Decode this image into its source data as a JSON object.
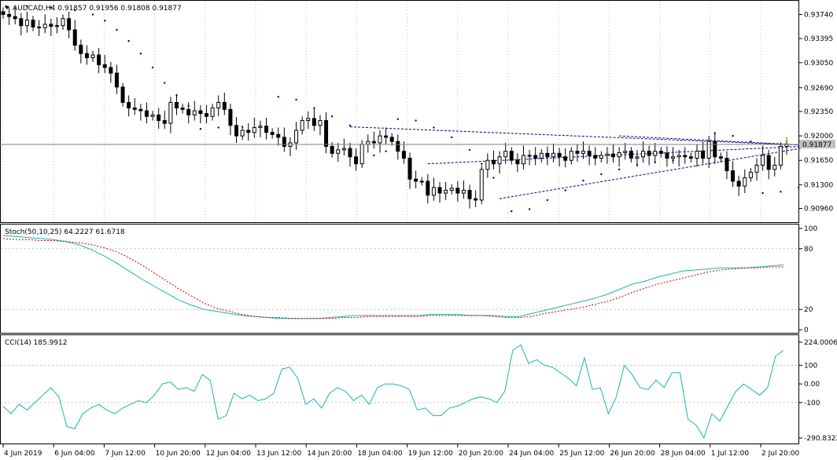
{
  "colors": {
    "background": "#ffffff",
    "grid": "#c0c0c0",
    "candle": "#000000",
    "sar_dots": "#000080",
    "trendlines": "#000080",
    "stoch_main": "#20b2aa",
    "stoch_signal": "#cc0000",
    "cci_line": "#20b2aa",
    "price_tag_bg": "#c0c0c0",
    "bid_line": "#808080"
  },
  "icons": {
    "menu": "triangle-down-icon",
    "arrow": "arrow-marker-icon"
  },
  "chart_data": [
    {
      "type": "candlestick",
      "title": "AUDCAD,H4  0.91857 0.91956 0.91808 0.91877",
      "symbol": "AUDCAD,H4",
      "ohlc_header": [
        "0.91857",
        "0.91956",
        "0.91808",
        "0.91877"
      ],
      "current_price": "0.91877",
      "current_value": 0.91877,
      "ylim": [
        0.9082,
        0.9388
      ],
      "y_ticks": [
        {
          "label": "0.93740",
          "value": 0.9374
        },
        {
          "label": "0.93395",
          "value": 0.93395
        },
        {
          "label": "0.93050",
          "value": 0.9305
        },
        {
          "label": "0.92690",
          "value": 0.9269
        },
        {
          "label": "0.92350",
          "value": 0.9235
        },
        {
          "label": "0.92000",
          "value": 0.92
        },
        {
          "label": "0.91650",
          "value": 0.9165
        },
        {
          "label": "0.91300",
          "value": 0.913
        },
        {
          "label": "0.90960",
          "value": 0.9096
        }
      ],
      "x_ticks": [
        "4 Jun 2019",
        "6 Jun 04:00",
        "7 Jun 12:00",
        "10 Jun 20:00",
        "12 Jun 04:00",
        "13 Jun 12:00",
        "14 Jun 20:00",
        "18 Jun 04:00",
        "19 Jun 12:00",
        "20 Jun 20:00",
        "24 Jun 04:00",
        "25 Jun 12:00",
        "26 Jun 20:00",
        "28 Jun 04:00",
        "1 Jul 12:00",
        "2 Jul 20:00"
      ],
      "close": [
        0.9374,
        0.9371,
        0.9368,
        0.9358,
        0.9366,
        0.9356,
        0.9355,
        0.936,
        0.9357,
        0.9358,
        0.9368,
        0.9352,
        0.933,
        0.9318,
        0.9312,
        0.9316,
        0.9302,
        0.9298,
        0.929,
        0.927,
        0.9248,
        0.924,
        0.9238,
        0.9236,
        0.9228,
        0.923,
        0.9222,
        0.9218,
        0.9248,
        0.924,
        0.9238,
        0.923,
        0.9236,
        0.9232,
        0.9228,
        0.924,
        0.9248,
        0.9238,
        0.9215,
        0.92,
        0.9208,
        0.9205,
        0.9212,
        0.9214,
        0.9205,
        0.9202,
        0.9198,
        0.9185,
        0.919,
        0.9208,
        0.9222,
        0.9225,
        0.9215,
        0.9222,
        0.9185,
        0.9175,
        0.918,
        0.9182,
        0.917,
        0.916,
        0.9188,
        0.9192,
        0.919,
        0.92,
        0.9198,
        0.9192,
        0.9178,
        0.9168,
        0.9138,
        0.9135,
        0.9135,
        0.9115,
        0.9126,
        0.9118,
        0.9122,
        0.9125,
        0.9118,
        0.9122,
        0.911,
        0.9108,
        0.9152,
        0.9165,
        0.916,
        0.917,
        0.9178,
        0.9165,
        0.916,
        0.9172,
        0.9172,
        0.9168,
        0.9175,
        0.917,
        0.9175,
        0.917,
        0.9165,
        0.9178,
        0.9175,
        0.9178,
        0.9172,
        0.9168,
        0.9172,
        0.9174,
        0.917,
        0.9176,
        0.9178,
        0.9168,
        0.917,
        0.9178,
        0.9172,
        0.9178,
        0.9175,
        0.9168,
        0.917,
        0.9172,
        0.917,
        0.9168,
        0.9178,
        0.9168,
        0.9192,
        0.917,
        0.9168,
        0.915,
        0.9135,
        0.9128,
        0.914,
        0.9148,
        0.9158,
        0.9172,
        0.9152,
        0.9158,
        0.9185,
        0.9188
      ],
      "sar": [
        {
          "x": 0.5,
          "y": 0.9386
        },
        {
          "x": 4,
          "y": 0.9386
        },
        {
          "x": 8,
          "y": 0.9384
        },
        {
          "x": 12,
          "y": 0.938
        },
        {
          "x": 15,
          "y": 0.9374
        },
        {
          "x": 17,
          "y": 0.9365
        },
        {
          "x": 19,
          "y": 0.9352
        },
        {
          "x": 21,
          "y": 0.9336
        },
        {
          "x": 23,
          "y": 0.9318
        },
        {
          "x": 25,
          "y": 0.9298
        },
        {
          "x": 27,
          "y": 0.9276
        },
        {
          "x": 29,
          "y": 0.9258
        },
        {
          "x": 31,
          "y": 0.9243
        },
        {
          "x": 33,
          "y": 0.921
        },
        {
          "x": 36,
          "y": 0.9212
        },
        {
          "x": 40,
          "y": 0.9213
        },
        {
          "x": 43,
          "y": 0.9214
        },
        {
          "x": 46,
          "y": 0.9256
        },
        {
          "x": 49,
          "y": 0.9252
        },
        {
          "x": 52,
          "y": 0.924
        },
        {
          "x": 55,
          "y": 0.9228
        },
        {
          "x": 58,
          "y": 0.9215
        },
        {
          "x": 60,
          "y": 0.917
        },
        {
          "x": 62,
          "y": 0.9172
        },
        {
          "x": 64,
          "y": 0.9178
        },
        {
          "x": 66,
          "y": 0.9224
        },
        {
          "x": 69,
          "y": 0.9222
        },
        {
          "x": 72,
          "y": 0.9212
        },
        {
          "x": 75,
          "y": 0.9198
        },
        {
          "x": 78,
          "y": 0.918
        },
        {
          "x": 80,
          "y": 0.916
        },
        {
          "x": 82,
          "y": 0.914
        },
        {
          "x": 85,
          "y": 0.9092
        },
        {
          "x": 88,
          "y": 0.9095
        },
        {
          "x": 91,
          "y": 0.9108
        },
        {
          "x": 94,
          "y": 0.9122
        },
        {
          "x": 97,
          "y": 0.9136
        },
        {
          "x": 100,
          "y": 0.9145
        },
        {
          "x": 103,
          "y": 0.9152
        },
        {
          "x": 106,
          "y": 0.9158
        },
        {
          "x": 109,
          "y": 0.9162
        },
        {
          "x": 112,
          "y": 0.9165
        },
        {
          "x": 116,
          "y": 0.9168
        },
        {
          "x": 119,
          "y": 0.9204
        },
        {
          "x": 122,
          "y": 0.92
        },
        {
          "x": 125,
          "y": 0.9192
        },
        {
          "x": 127,
          "y": 0.9118
        },
        {
          "x": 130,
          "y": 0.912
        },
        {
          "x": 133,
          "y": 0.9126
        }
      ],
      "trendlines": [
        {
          "x1": 58,
          "y1": 0.9213,
          "x2": 136,
          "y2": 0.9186
        },
        {
          "x1": 83,
          "y1": 0.911,
          "x2": 136,
          "y2": 0.9186
        },
        {
          "x1": 71,
          "y1": 0.916,
          "x2": 136,
          "y2": 0.9186
        },
        {
          "x1": 103,
          "y1": 0.92,
          "x2": 136,
          "y2": 0.9186
        }
      ]
    },
    {
      "type": "line",
      "title": "Stoch(50,10,25) 64.2227 61.6718",
      "ylim": [
        0,
        100
      ],
      "y_ticks": [
        {
          "label": "100",
          "value": 100
        },
        {
          "label": "80",
          "value": 80
        },
        {
          "label": "20",
          "value": 20
        },
        {
          "label": "0",
          "value": 0
        }
      ],
      "series": [
        {
          "name": "main",
          "values": [
            93,
            92,
            91,
            90,
            89,
            87,
            84,
            79,
            73,
            66,
            58,
            50,
            43,
            36,
            29,
            24,
            20,
            18,
            16,
            14,
            13,
            12,
            11,
            11,
            11,
            11,
            12,
            13,
            14,
            14,
            14,
            14,
            14,
            14,
            15,
            15,
            15,
            14,
            14,
            14,
            13,
            13,
            16,
            19,
            22,
            25,
            28,
            31,
            35,
            40,
            45,
            48,
            52,
            55,
            58,
            59,
            60,
            61,
            61,
            61,
            62,
            63,
            64
          ]
        },
        {
          "name": "signal",
          "values": [
            90,
            89,
            89,
            88,
            88,
            87,
            86,
            84,
            81,
            77,
            71,
            64,
            56,
            48,
            40,
            33,
            26,
            21,
            18,
            15,
            13,
            12,
            12,
            11,
            11,
            11,
            11,
            12,
            12,
            13,
            13,
            13,
            13,
            13,
            14,
            14,
            14,
            14,
            14,
            13,
            12,
            12,
            13,
            16,
            18,
            20,
            22,
            25,
            28,
            32,
            37,
            41,
            45,
            48,
            51,
            54,
            57,
            59,
            60,
            61,
            61,
            62,
            62
          ]
        }
      ]
    },
    {
      "type": "line",
      "title": "CCI(14) 185.9912",
      "ylim": [
        -290.8322,
        224.0006
      ],
      "y_ticks": [
        {
          "label": "224.0006",
          "value": 224.0006
        },
        {
          "label": "100",
          "value": 100
        },
        {
          "label": "0.00",
          "value": 0
        },
        {
          "label": "-100",
          "value": -100
        },
        {
          "label": "-290.8322",
          "value": -290.8322
        }
      ],
      "series": [
        {
          "name": "CCI",
          "values": [
            -120,
            -160,
            -110,
            -140,
            -100,
            -60,
            -20,
            -70,
            -230,
            -240,
            -160,
            -130,
            -110,
            -140,
            -160,
            -130,
            -110,
            -90,
            -100,
            -60,
            0,
            10,
            -30,
            -20,
            -40,
            50,
            20,
            -190,
            -170,
            -50,
            -80,
            -60,
            -90,
            -80,
            -50,
            80,
            90,
            30,
            -110,
            -80,
            -130,
            -50,
            -20,
            -40,
            -90,
            -60,
            -110,
            -20,
            0,
            0,
            -10,
            -30,
            -140,
            -130,
            -170,
            -170,
            -130,
            -120,
            -100,
            -80,
            -70,
            -80,
            -100,
            -40,
            180,
            210,
            110,
            130,
            100,
            90,
            60,
            30,
            -10,
            140,
            -30,
            -20,
            -160,
            -70,
            100,
            50,
            -20,
            -30,
            20,
            -20,
            60,
            60,
            -190,
            -220,
            -290,
            -160,
            -200,
            -120,
            -40,
            0,
            -30,
            -60,
            -20,
            150,
            180
          ]
        }
      ]
    }
  ]
}
